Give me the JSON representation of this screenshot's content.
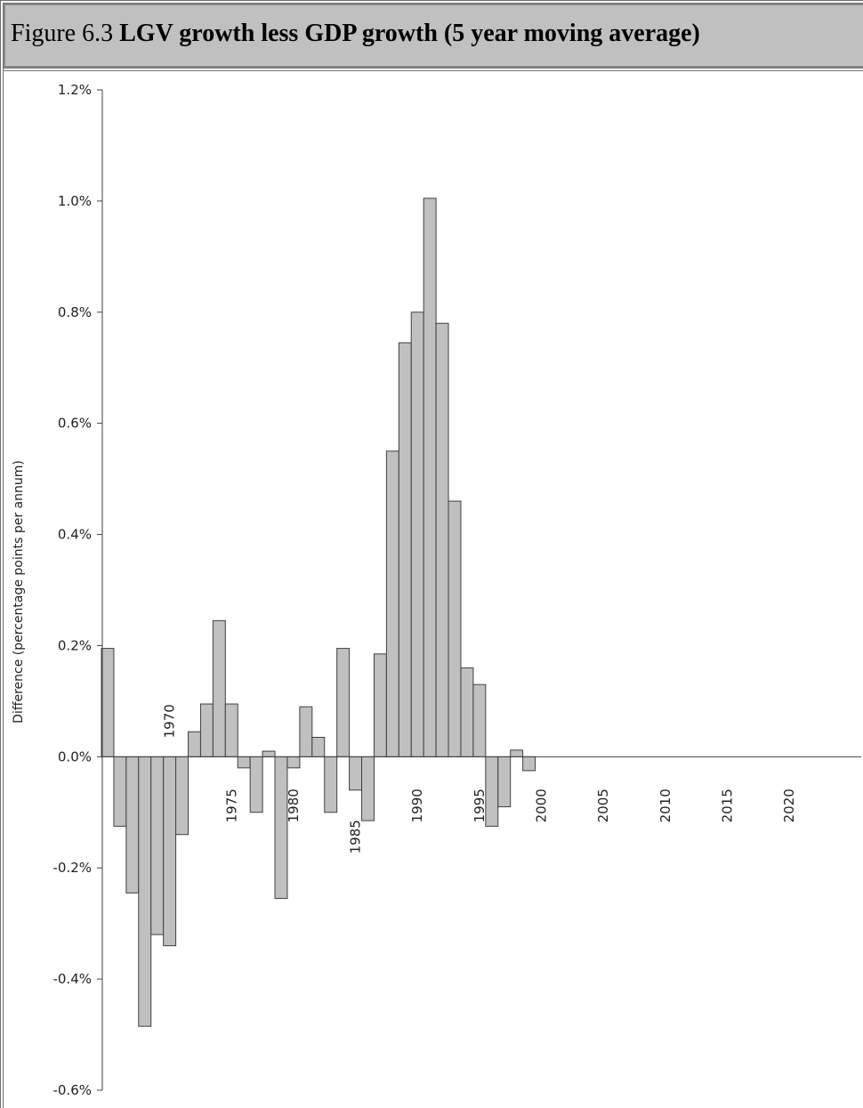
{
  "caption": {
    "label": "Figure 6.3",
    "title": "LGV growth less GDP growth (5 year moving average)"
  },
  "colors": {
    "bar_fill": "#c0c0c0",
    "bar_stroke": "#404040",
    "axis": "#404040",
    "caption_bg": "#c0c0c0"
  },
  "chart_data": {
    "type": "bar",
    "title": "LGV growth less GDP growth (5 year moving average)",
    "ylabel": "Difference (percentage points per annum)",
    "xlabel": "",
    "ylim": [
      -0.6,
      1.2
    ],
    "y_ticks": [
      1.2,
      1.0,
      0.8,
      0.6,
      0.4,
      0.2,
      0.0,
      -0.2,
      -0.4,
      -0.6
    ],
    "y_tick_labels": [
      "1.2%",
      "1.0%",
      "0.8%",
      "0.6%",
      "0.4%",
      "0.2%",
      "0.0%",
      "-0.2%",
      "-0.4%",
      "-0.6%"
    ],
    "x_tick_labels": [
      "1970",
      "1975",
      "1980",
      "1985",
      "1990",
      "1995",
      "2000",
      "2005",
      "2010",
      "2015",
      "2020"
    ],
    "grid": false,
    "legend": "none",
    "categories": [
      1965,
      1966,
      1967,
      1968,
      1969,
      1970,
      1971,
      1972,
      1973,
      1974,
      1975,
      1976,
      1977,
      1978,
      1979,
      1980,
      1981,
      1982,
      1983,
      1984,
      1985,
      1986,
      1987,
      1988,
      1989,
      1990,
      1991,
      1992,
      1993,
      1994,
      1995,
      1996,
      1997,
      1998,
      1999
    ],
    "values": [
      0.195,
      -0.125,
      -0.245,
      -0.485,
      -0.32,
      -0.34,
      -0.14,
      0.045,
      0.095,
      0.245,
      0.095,
      -0.02,
      -0.1,
      0.01,
      -0.255,
      -0.02,
      0.09,
      0.035,
      -0.1,
      0.195,
      -0.06,
      -0.115,
      0.185,
      0.55,
      0.745,
      0.8,
      1.005,
      0.78,
      0.46,
      0.16,
      0.13,
      -0.125,
      -0.09,
      0.012,
      -0.025
    ]
  }
}
